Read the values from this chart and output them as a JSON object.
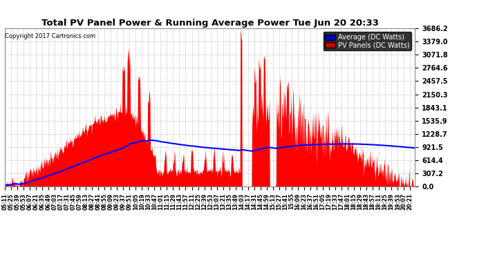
{
  "title": "Total PV Panel Power & Running Average Power Tue Jun 20 20:33",
  "copyright": "Copyright 2017 Cartronics.com",
  "legend_labels": [
    "Average (DC Watts)",
    "PV Panels (DC Watts)"
  ],
  "legend_avg_color": "#0000cc",
  "legend_pv_color": "#cc0000",
  "ymin": 0.0,
  "ymax": 3686.2,
  "yticks": [
    0.0,
    307.2,
    614.4,
    921.5,
    1228.7,
    1535.9,
    1843.1,
    2150.3,
    2457.5,
    2764.6,
    3071.8,
    3379.0,
    3686.2
  ],
  "background_color": "#ffffff",
  "plot_bg_color": "#ffffff",
  "grid_color": "#aaaaaa",
  "pv_color": "#ff0000",
  "avg_color": "#0000ff"
}
